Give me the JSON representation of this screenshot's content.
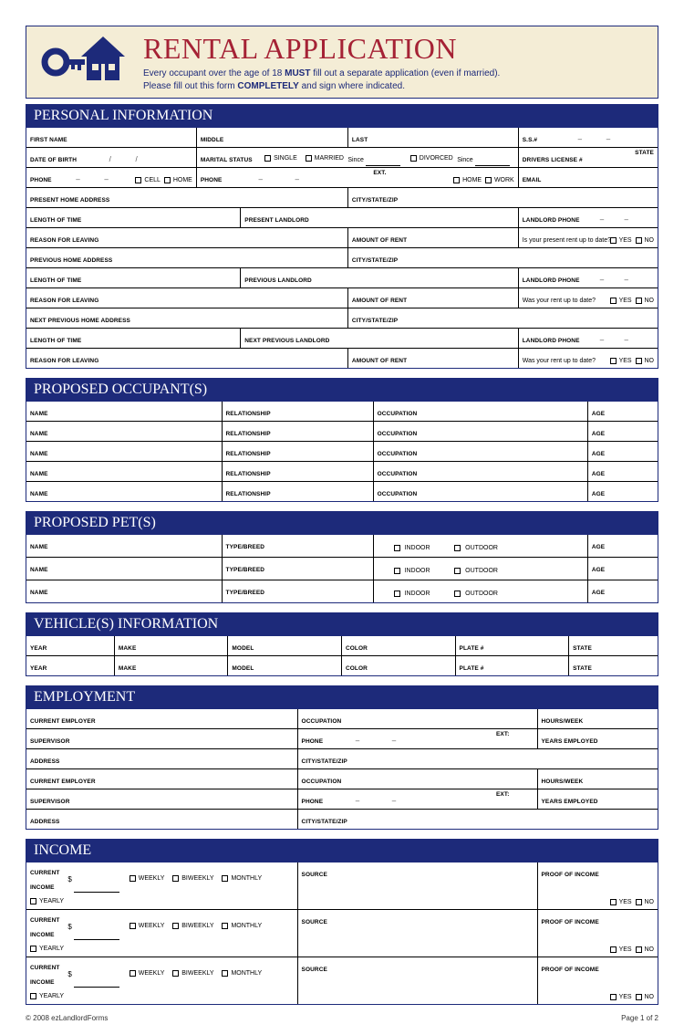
{
  "colors": {
    "navy": "#1d2a7a",
    "cream": "#f4edd6",
    "crimson": "#a52235"
  },
  "header": {
    "title": "RENTAL APPLICATION",
    "line1a": "Every occupant over the age of 18 ",
    "line1b": "MUST",
    "line1c": " fill out a separate application (even if married).",
    "line2a": "Please fill out this form ",
    "line2b": "COMPLETELY",
    "line2c": " and sign where indicated."
  },
  "labels": {
    "personal": "PERSONAL INFORMATION",
    "occupants": "PROPOSED OCCUPANT(S)",
    "pets": "PROPOSED PET(S)",
    "vehicles": "VEHICLE(S) INFORMATION",
    "employment": "EMPLOYMENT",
    "income": "INCOME",
    "first": "FIRST NAME",
    "middle": "MIDDLE",
    "last": "LAST",
    "ssn": "S.S.#",
    "dob": "DATE OF BIRTH",
    "marital": "MARITAL STATUS",
    "single": "SINGLE",
    "married": "MARRIED",
    "since": "Since",
    "divorced": "DIVORCED",
    "dl": "DRIVERS LICENSE #",
    "state": "STATE",
    "phone": "PHONE",
    "cell": "CELL",
    "home": "HOME",
    "work": "WORK",
    "ext": "EXT.",
    "email": "EMAIL",
    "pha": "PRESENT HOME ADDRESS",
    "csz": "CITY/STATE/ZIP",
    "lot": "LENGTH OF TIME",
    "pl": "PRESENT LANDLORD",
    "lp": "LANDLORD PHONE",
    "rfl": "REASON FOR LEAVING",
    "aor": "AMOUNT OF RENT",
    "uptodate": "Is your present rent up to date?",
    "wasuptodate": "Was your rent up to date?",
    "yes": "YES",
    "no": "NO",
    "prevha": "PREVIOUS HOME ADDRESS",
    "prevl": "PREVIOUS LANDLORD",
    "nprevha": "NEXT PREVIOUS HOME ADDRESS",
    "nprevl": "NEXT PREVIOUS LANDLORD",
    "name": "NAME",
    "rel": "RELATIONSHIP",
    "occ": "OCCUPATION",
    "age": "AGE",
    "type": "TYPE/BREED",
    "indoor": "INDOOR",
    "outdoor": "OUTDOOR",
    "year": "YEAR",
    "make": "MAKE",
    "model": "MODEL",
    "color": "COLOR",
    "plate": "PLATE #",
    "cemp": "CURRENT EMPLOYER",
    "sup": "SUPERVISOR",
    "addr": "ADDRESS",
    "hw": "HOURS/WEEK",
    "ye": "YEARS EMPLOYED",
    "ext2": "EXT:",
    "ci": "CURRENT",
    "ci2": "INCOME",
    "weekly": "WEEKLY",
    "biweekly": "BIWEEKLY",
    "monthly": "MONTHLY",
    "yearly": "YEARLY",
    "source": "SOURCE",
    "poi": "PROOF OF INCOME"
  },
  "footer": {
    "left": "© 2008 ezLandlordForms",
    "right": "Page 1 of 2"
  }
}
